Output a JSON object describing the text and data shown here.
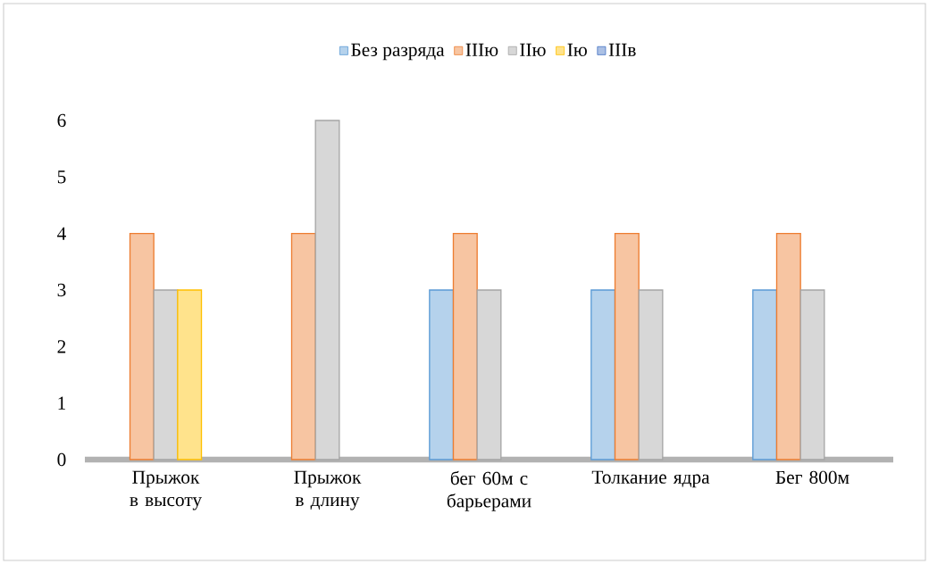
{
  "chart_data": {
    "type": "bar",
    "categories": [
      "Прыжок в высоту",
      "Прыжок в длину",
      "бег 60м с барьерами",
      "Толкание ядра",
      "Бег 800м"
    ],
    "series": [
      {
        "name": "Без разряда",
        "color": "#5b9bd5",
        "values": [
          null,
          null,
          3,
          3,
          3
        ]
      },
      {
        "name": "IIIю",
        "color": "#ed7d31",
        "values": [
          4,
          4,
          4,
          4,
          4
        ]
      },
      {
        "name": "IIю",
        "color": "#a5a5a5",
        "values": [
          3,
          6,
          3,
          3,
          3
        ]
      },
      {
        "name": "Iю",
        "color": "#ffc000",
        "values": [
          3,
          null,
          null,
          null,
          null
        ]
      },
      {
        "name": "IIIв",
        "color": "#4472c4",
        "values": [
          null,
          null,
          null,
          null,
          null
        ]
      }
    ],
    "ylim": [
      0,
      6
    ],
    "yticks": [
      0,
      1,
      2,
      3,
      4,
      5,
      6
    ],
    "grid": false,
    "legend": "top"
  }
}
